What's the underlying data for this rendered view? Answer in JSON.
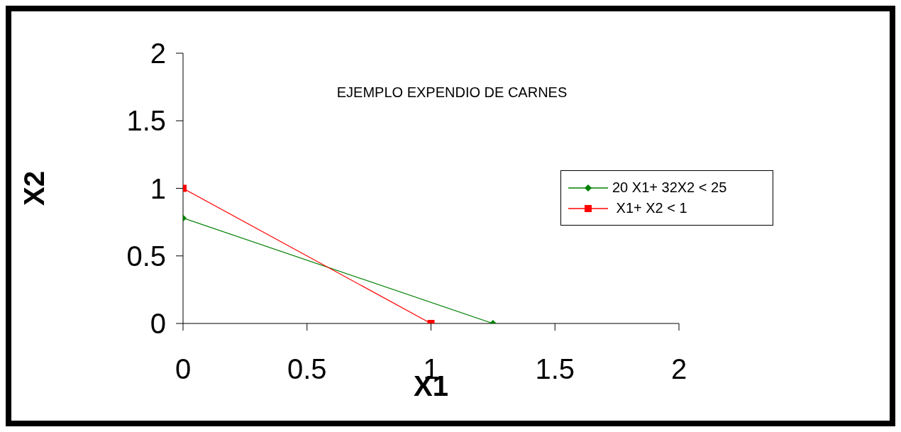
{
  "chart_data": {
    "type": "line",
    "title": "EJEMPLO EXPENDIO DE CARNES",
    "xlabel": "X1",
    "ylabel": "X2",
    "xlim": [
      0,
      2
    ],
    "xticks": [
      0,
      0.5,
      1,
      1.5,
      2
    ],
    "ylim": [
      0,
      2
    ],
    "yticks": [
      0,
      0.5,
      1,
      1.5,
      2
    ],
    "grid": false,
    "legend": "right",
    "line_style": "solid",
    "series": [
      {
        "name": "20 X1+ 32X2 < 25",
        "color": "#008000",
        "marker": "diamond",
        "x": [
          0,
          1.25
        ],
        "values": [
          0.78,
          0
        ]
      },
      {
        "name": " X1+ X2 < 1",
        "color": "#ff0000",
        "marker": "square",
        "x": [
          0,
          1
        ],
        "values": [
          1,
          0
        ]
      }
    ]
  }
}
